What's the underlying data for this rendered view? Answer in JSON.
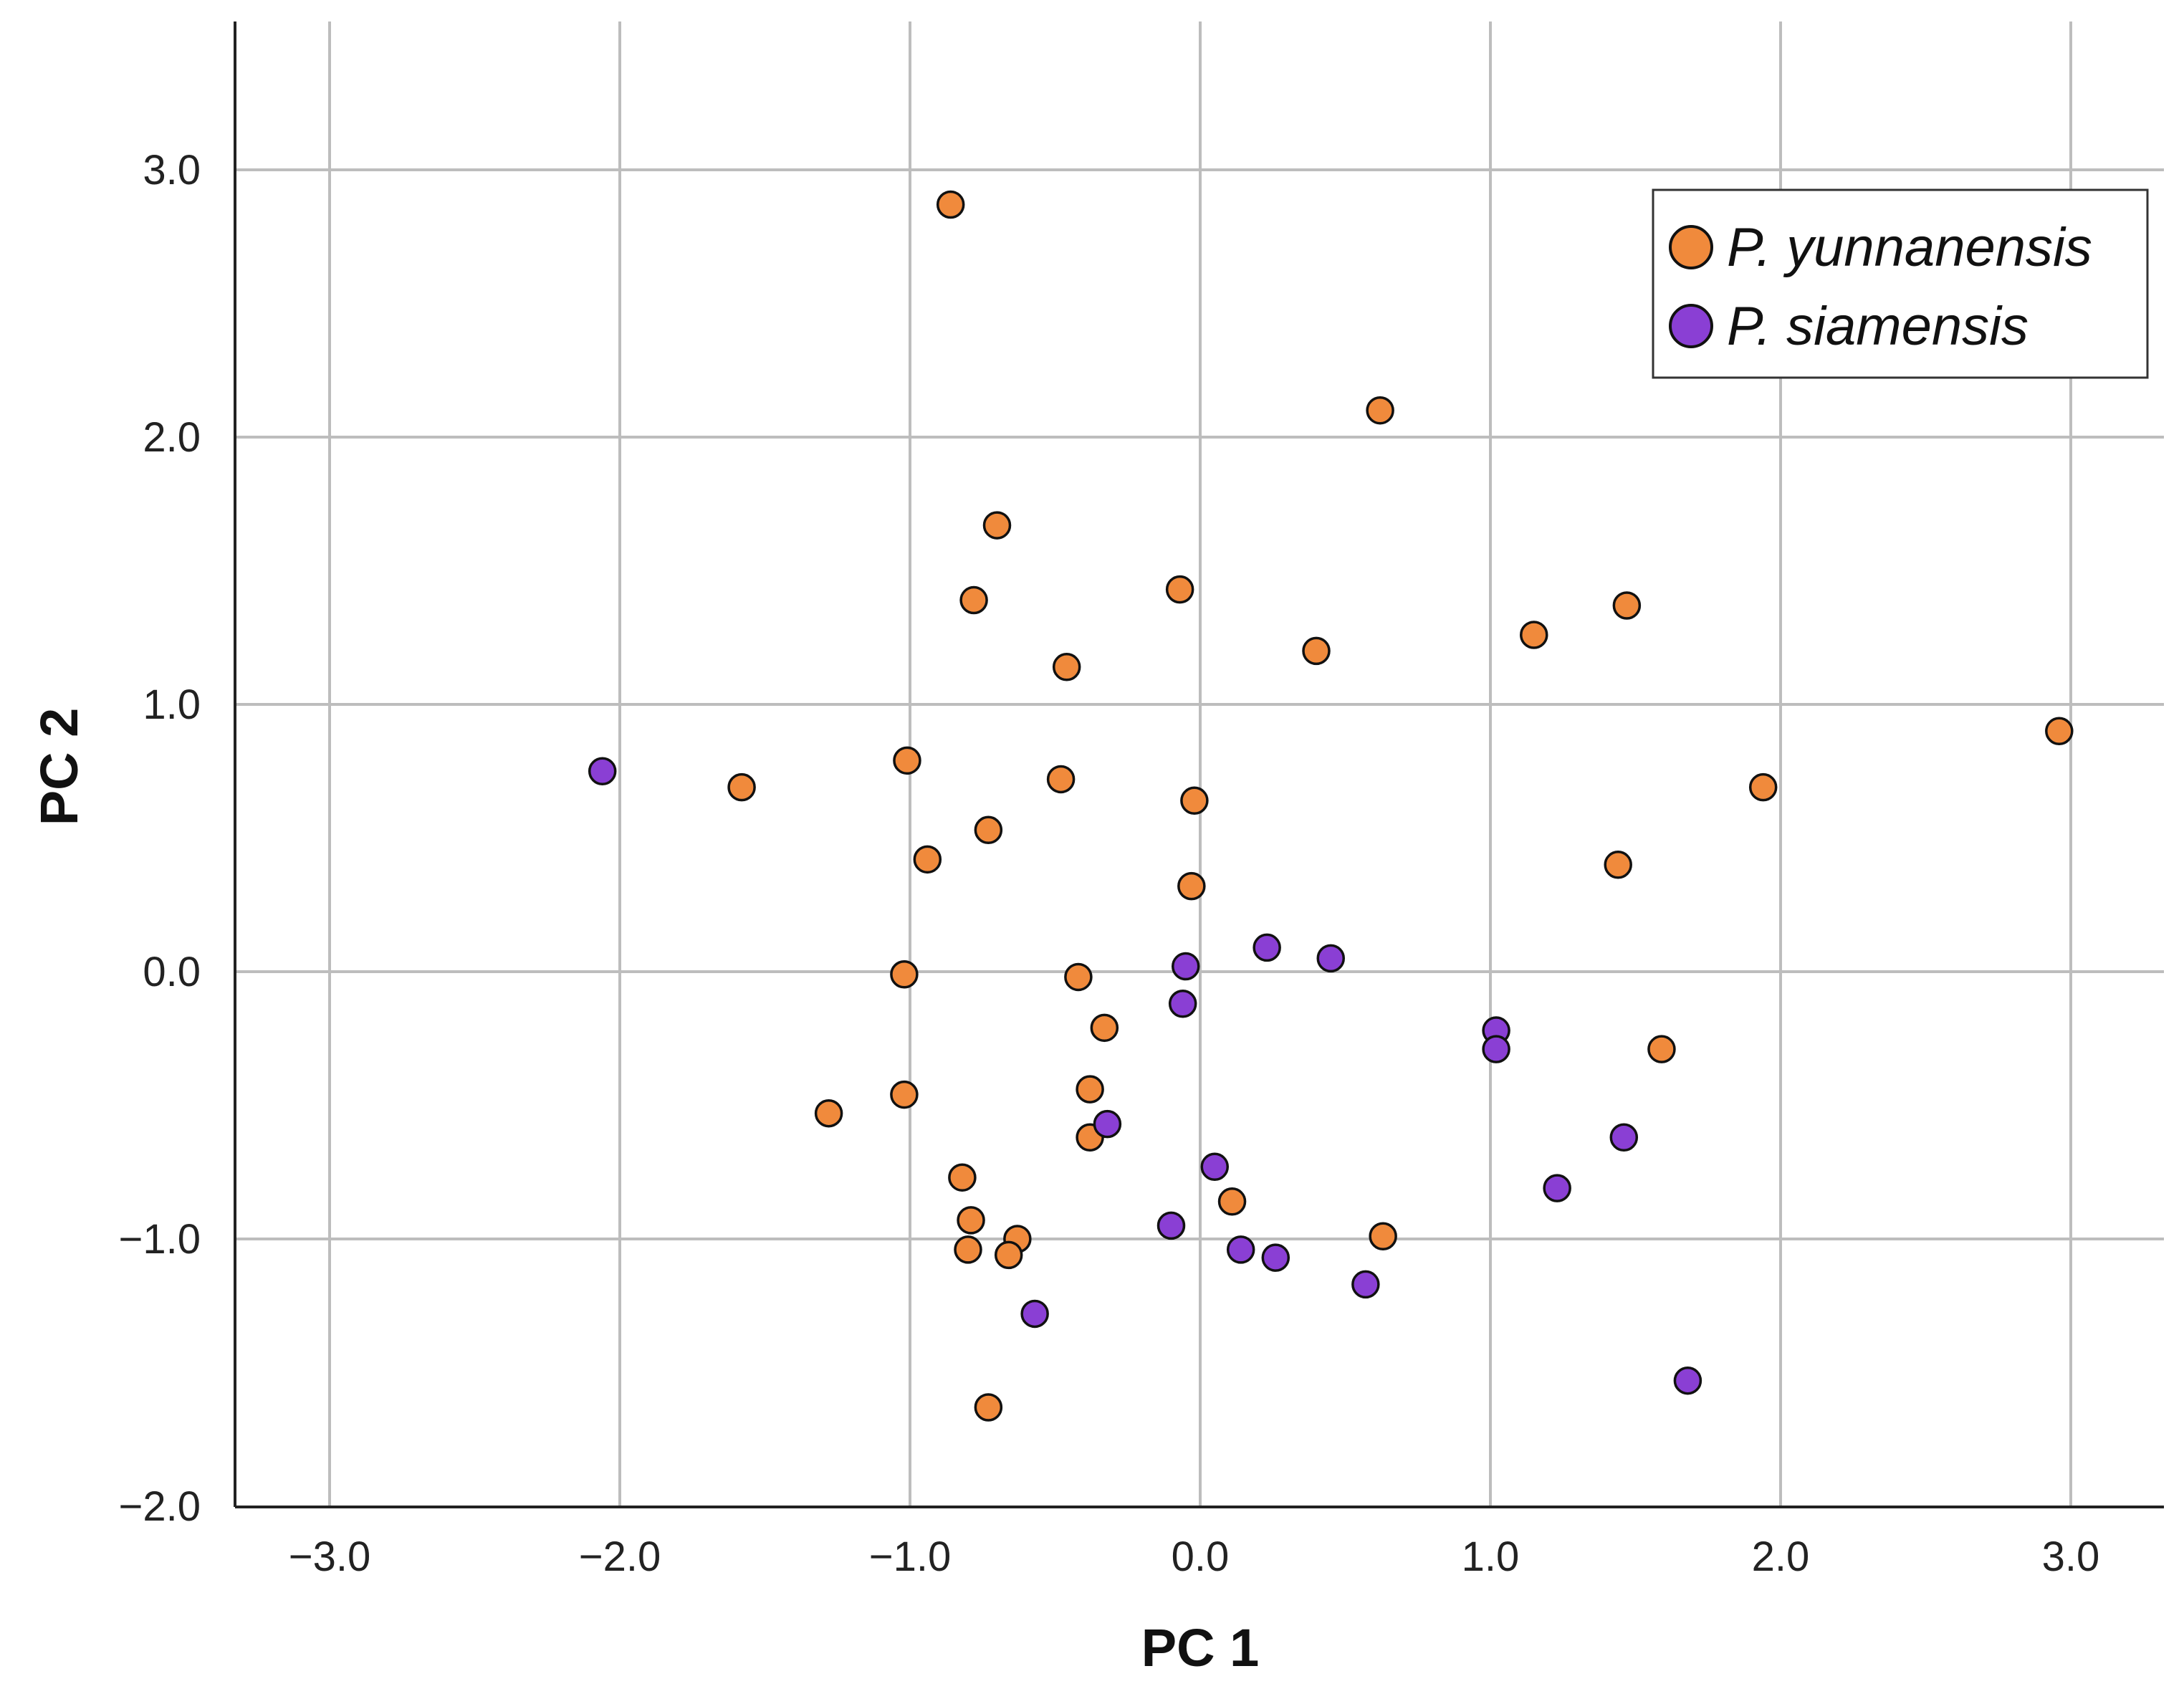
{
  "chart_data": {
    "type": "scatter",
    "xlabel": "PC 1",
    "ylabel": "PC 2",
    "xlim": [
      -3.33,
      3.33
    ],
    "ylim": [
      -2.0,
      3.55
    ],
    "grid": true,
    "legend_position": "top-right",
    "x_ticks": [
      -3.0,
      -2.0,
      -1.0,
      0.0,
      1.0,
      2.0,
      3.0
    ],
    "x_tick_labels": [
      "−3.0",
      "−2.0",
      "−1.0",
      "0.0",
      "1.0",
      "2.0",
      "3.0"
    ],
    "y_ticks": [
      -2.0,
      -1.0,
      0.0,
      1.0,
      2.0,
      3.0
    ],
    "y_tick_labels": [
      "−2.0",
      "−1.0",
      "0.0",
      "1.0",
      "2.0",
      "3.0"
    ],
    "series": [
      {
        "name": "P. yunnanensis",
        "color": "#f08a3c",
        "points": [
          [
            -0.86,
            2.87
          ],
          [
            0.62,
            2.1
          ],
          [
            -0.7,
            1.67
          ],
          [
            -0.78,
            1.39
          ],
          [
            -0.07,
            1.43
          ],
          [
            -0.46,
            1.14
          ],
          [
            0.4,
            1.2
          ],
          [
            1.15,
            1.26
          ],
          [
            1.47,
            1.37
          ],
          [
            2.96,
            0.9
          ],
          [
            -1.58,
            0.69
          ],
          [
            -1.01,
            0.79
          ],
          [
            -0.48,
            0.72
          ],
          [
            -0.02,
            0.64
          ],
          [
            1.94,
            0.69
          ],
          [
            -0.73,
            0.53
          ],
          [
            -0.94,
            0.42
          ],
          [
            1.44,
            0.4
          ],
          [
            -0.03,
            0.32
          ],
          [
            -1.02,
            -0.01
          ],
          [
            -0.42,
            -0.02
          ],
          [
            -0.33,
            -0.21
          ],
          [
            1.59,
            -0.29
          ],
          [
            -0.38,
            -0.44
          ],
          [
            -1.02,
            -0.46
          ],
          [
            -1.28,
            -0.53
          ],
          [
            -0.38,
            -0.62
          ],
          [
            -0.82,
            -0.77
          ],
          [
            0.11,
            -0.86
          ],
          [
            -0.79,
            -0.93
          ],
          [
            -0.63,
            -1.0
          ],
          [
            0.63,
            -0.99
          ],
          [
            -0.8,
            -1.04
          ],
          [
            -0.66,
            -1.06
          ],
          [
            -0.73,
            -1.63
          ]
        ]
      },
      {
        "name": "P. siamensis",
        "color": "#8a3fd4",
        "points": [
          [
            -2.06,
            0.75
          ],
          [
            0.23,
            0.09
          ],
          [
            0.45,
            0.05
          ],
          [
            -0.05,
            0.02
          ],
          [
            -0.06,
            -0.12
          ],
          [
            1.02,
            -0.22
          ],
          [
            1.02,
            -0.29
          ],
          [
            -0.32,
            -0.57
          ],
          [
            1.46,
            -0.62
          ],
          [
            0.05,
            -0.73
          ],
          [
            1.23,
            -0.81
          ],
          [
            -0.1,
            -0.95
          ],
          [
            0.14,
            -1.04
          ],
          [
            0.26,
            -1.07
          ],
          [
            0.57,
            -1.17
          ],
          [
            -0.57,
            -1.28
          ],
          [
            1.68,
            -1.53
          ]
        ]
      }
    ]
  }
}
